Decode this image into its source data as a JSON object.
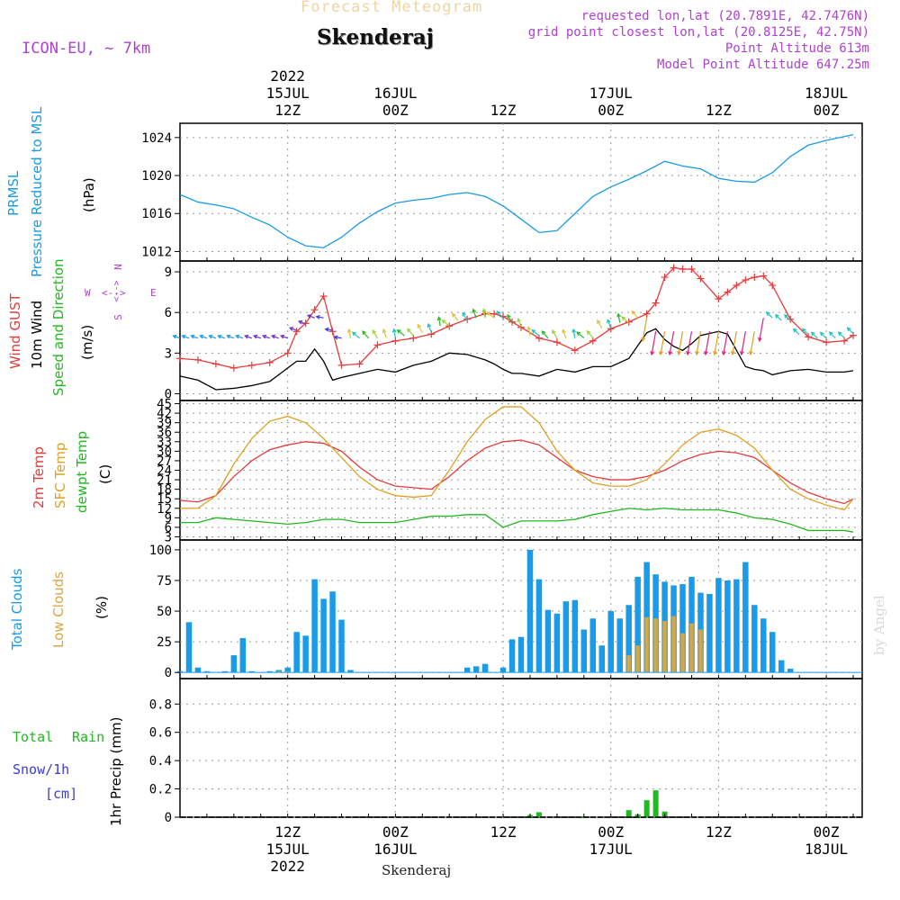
{
  "header": {
    "product": "Forecast Meteogram",
    "location": "Skenderaj",
    "model": "ICON-EU, ~ 7km",
    "requested": "requested lon,lat (20.7891E, 42.7476N)",
    "gridpoint": "grid point closest lon,lat (20.8125E, 42.75N)",
    "point_alt": "Point Altitude 613m",
    "model_alt": "Model Point Altitude 647.25m",
    "footer_location": "Skenderaj",
    "credit": "by Angel"
  },
  "colors": {
    "pressure": "#1a9be8",
    "gust": "#e83a3a",
    "wind": "#000000",
    "wind_dir": "#22b822",
    "t2m": "#e83a3a",
    "sfc": "#e0a020",
    "dewpt": "#22b822",
    "total_clouds": "#1a9be8",
    "low_clouds": "#d9a640",
    "rain": "#22b822",
    "snow": "#3a3ae0",
    "meta": "#b040d0",
    "credit": "#d0d0d0"
  },
  "time_axis": {
    "top_labels": [
      {
        "h": 12,
        "lines": [
          "2022",
          "15JUL",
          "12Z"
        ]
      },
      {
        "h": 24,
        "lines": [
          "16JUL",
          "00Z"
        ]
      },
      {
        "h": 36,
        "lines": [
          "12Z"
        ]
      },
      {
        "h": 48,
        "lines": [
          "17JUL",
          "00Z"
        ]
      },
      {
        "h": 60,
        "lines": [
          "12Z"
        ]
      },
      {
        "h": 72,
        "lines": [
          "18JUL",
          "00Z"
        ]
      }
    ],
    "bottom_labels": [
      {
        "h": 12,
        "lines": [
          "12Z",
          "15JUL",
          "2022"
        ]
      },
      {
        "h": 24,
        "lines": [
          "00Z",
          "16JUL"
        ]
      },
      {
        "h": 36,
        "lines": [
          "12Z"
        ]
      },
      {
        "h": 48,
        "lines": [
          "00Z",
          "17JUL"
        ]
      },
      {
        "h": 60,
        "lines": [
          "12Z"
        ]
      },
      {
        "h": 72,
        "lines": [
          "00Z",
          "18JUL"
        ]
      }
    ]
  },
  "panels": {
    "pressure": {
      "labels": [
        "PRMSL",
        "Pressure Reduced to MSL"
      ],
      "unit": "(hPa)"
    },
    "wind": {
      "labels": [
        "Wind GUST",
        "10m Wind",
        "Speed and Direction"
      ],
      "unit": "(m/s)",
      "compass": [
        "N",
        "S",
        "W",
        "E"
      ]
    },
    "temp": {
      "labels": [
        "2m Temp",
        "SFC Temp",
        "dewpt Temp"
      ],
      "unit": "(C)"
    },
    "clouds": {
      "labels": [
        "Total Clouds",
        "Low Clouds"
      ],
      "unit": "(%)"
    },
    "precip": {
      "labels": [
        "Total",
        "Rain",
        "Snow/1h",
        "[cm]"
      ],
      "unit": "1hr Precip (mm)"
    }
  },
  "chart_data": [
    {
      "type": "line",
      "name": "pressure",
      "ylabel": "Pressure Reduced to MSL (hPa)",
      "ylim": [
        1011,
        1025.5
      ],
      "yticks": [
        1012,
        1016,
        1020,
        1024
      ],
      "x": [
        0,
        2,
        4,
        6,
        8,
        10,
        12,
        14,
        16,
        18,
        20,
        22,
        24,
        26,
        28,
        30,
        32,
        34,
        36,
        38,
        40,
        42,
        44,
        46,
        48,
        50,
        52,
        54,
        56,
        58,
        60,
        62,
        64,
        66,
        68,
        70,
        72,
        74,
        75
      ],
      "series": [
        {
          "name": "PRMSL",
          "values": [
            1018,
            1017.2,
            1016.9,
            1016.5,
            1015.6,
            1014.8,
            1013.5,
            1012.6,
            1012.4,
            1013.5,
            1015,
            1016.2,
            1017.1,
            1017.4,
            1017.6,
            1018,
            1018.2,
            1017.8,
            1016.8,
            1015.4,
            1014,
            1014.2,
            1016,
            1017.8,
            1018.8,
            1019.6,
            1020.5,
            1021.5,
            1021,
            1020.7,
            1019.7,
            1019.4,
            1019.3,
            1020.3,
            1022,
            1023.2,
            1023.7,
            1024.1,
            1024.3
          ]
        }
      ],
      "grid": true
    },
    {
      "type": "line",
      "name": "wind",
      "ylabel": "(m/s)",
      "ylim": [
        -0.5,
        9.8
      ],
      "yticks": [
        0,
        3,
        6,
        9
      ],
      "x": [
        0,
        2,
        4,
        6,
        8,
        10,
        12,
        13,
        14,
        15,
        16,
        17,
        18,
        20,
        22,
        24,
        26,
        28,
        30,
        32,
        34,
        35,
        36,
        37,
        38,
        40,
        42,
        44,
        46,
        48,
        50,
        52,
        53,
        54,
        55,
        56,
        57,
        58,
        60,
        61,
        62,
        63,
        64,
        65,
        66,
        68,
        70,
        72,
        74,
        75
      ],
      "series": [
        {
          "name": "Wind GUST",
          "values": [
            2.6,
            2.5,
            2.2,
            1.9,
            2.1,
            2.3,
            3.0,
            4.6,
            5.2,
            6.2,
            7.2,
            4.6,
            2.1,
            2.2,
            3.6,
            3.9,
            4.1,
            4.4,
            5.0,
            5.5,
            5.9,
            5.9,
            5.7,
            5.3,
            4.9,
            4.1,
            3.8,
            3.2,
            3.9,
            4.8,
            5.3,
            5.9,
            6.7,
            8.6,
            9.3,
            9.2,
            9.2,
            8.5,
            7.0,
            7.5,
            8.0,
            8.4,
            8.6,
            8.7,
            8.0,
            5.5,
            4.2,
            3.8,
            3.9,
            4.3
          ]
        },
        {
          "name": "10m Wind",
          "values": [
            1.3,
            1.0,
            0.3,
            0.4,
            0.6,
            0.9,
            1.9,
            2.4,
            2.4,
            3.3,
            2.4,
            1.0,
            1.2,
            1.5,
            1.8,
            1.6,
            2.1,
            2.4,
            3.0,
            2.9,
            2.5,
            2.2,
            1.8,
            1.5,
            1.5,
            1.3,
            1.8,
            1.6,
            2.0,
            2.0,
            2.6,
            4.5,
            4.8,
            4.0,
            3.5,
            3.2,
            3.7,
            4.3,
            4.6,
            4.4,
            3.2,
            2.0,
            1.8,
            1.7,
            1.4,
            1.7,
            1.8,
            1.6,
            1.6,
            1.7
          ]
        }
      ],
      "wind_barbs": true,
      "grid": true
    },
    {
      "type": "line",
      "name": "temperature",
      "ylabel": "(C)",
      "ylim": [
        2,
        46
      ],
      "yticks": [
        3,
        6,
        9,
        12,
        15,
        18,
        21,
        24,
        27,
        30,
        33,
        36,
        39,
        42,
        45
      ],
      "x": [
        0,
        2,
        4,
        6,
        8,
        10,
        12,
        14,
        16,
        18,
        20,
        22,
        24,
        26,
        28,
        30,
        32,
        34,
        36,
        38,
        40,
        42,
        44,
        46,
        48,
        50,
        52,
        54,
        56,
        58,
        60,
        62,
        64,
        66,
        68,
        70,
        72,
        74,
        75
      ],
      "series": [
        {
          "name": "2m Temp",
          "values": [
            14.5,
            14,
            16,
            22,
            27,
            30.5,
            32,
            33,
            32.5,
            30,
            25,
            21,
            19,
            18.5,
            18,
            22,
            27,
            31,
            33,
            33.5,
            32,
            28,
            24,
            22,
            21,
            21,
            22,
            24,
            27,
            29,
            30,
            29.5,
            28,
            24,
            20,
            17,
            15,
            13.5,
            15
          ]
        },
        {
          "name": "SFC Temp",
          "values": [
            12,
            12,
            16,
            26,
            34,
            39.5,
            41,
            39,
            34,
            28,
            22,
            18,
            16,
            15.5,
            16,
            24,
            33,
            40,
            44,
            44,
            39,
            30,
            24,
            20,
            19,
            19,
            21,
            26,
            32,
            36,
            37,
            35,
            31,
            24,
            18,
            15,
            13,
            11.5,
            15
          ]
        },
        {
          "name": "dewpt Temp",
          "values": [
            7.5,
            7.5,
            9,
            8.5,
            8,
            7.5,
            7,
            7.5,
            8.5,
            8.5,
            7.5,
            7.5,
            7.5,
            8.5,
            9.5,
            9.5,
            10,
            10,
            6,
            8,
            8,
            8,
            8.5,
            10,
            11,
            12,
            11.5,
            12,
            11.5,
            11.5,
            11.5,
            10.5,
            9,
            8.5,
            7,
            5,
            5,
            5,
            4.5
          ]
        }
      ],
      "grid": true
    },
    {
      "type": "bar",
      "name": "clouds",
      "ylabel": "(%)",
      "ylim": [
        -5,
        108
      ],
      "yticks": [
        0,
        25,
        50,
        75,
        100
      ],
      "x": [
        0,
        1,
        2,
        3,
        4,
        5,
        6,
        7,
        8,
        9,
        10,
        11,
        12,
        13,
        14,
        15,
        16,
        17,
        18,
        19,
        20,
        21,
        22,
        23,
        24,
        25,
        26,
        27,
        28,
        29,
        30,
        31,
        32,
        33,
        34,
        35,
        36,
        37,
        38,
        39,
        40,
        41,
        42,
        43,
        44,
        45,
        46,
        47,
        48,
        49,
        50,
        51,
        52,
        53,
        54,
        55,
        56,
        57,
        58,
        59,
        60,
        61,
        62,
        63,
        64,
        65,
        66,
        67,
        68,
        69,
        70,
        71,
        72,
        73,
        74,
        75
      ],
      "series": [
        {
          "name": "Total Clouds",
          "values": [
            1,
            41,
            4,
            1,
            0,
            1,
            14,
            28,
            1,
            0,
            1,
            2,
            4,
            33,
            30,
            76,
            60,
            66,
            43,
            2,
            0,
            0,
            0,
            0,
            0,
            0,
            0,
            0,
            0,
            0,
            0,
            0,
            4,
            5,
            7,
            0,
            4,
            27,
            29,
            100,
            76,
            51,
            48,
            58,
            59,
            35,
            44,
            22,
            50,
            44,
            55,
            78,
            90,
            80,
            74,
            71,
            72,
            78,
            65,
            64,
            77,
            75,
            76,
            90,
            55,
            44,
            33,
            10,
            3,
            0,
            0,
            0,
            0,
            0,
            0,
            0
          ]
        },
        {
          "name": "Low Clouds",
          "values": [
            0,
            0,
            0,
            0,
            0,
            0,
            0,
            0,
            0,
            0,
            0,
            1,
            1,
            0,
            0,
            0,
            0,
            0,
            0,
            0,
            0,
            0,
            0,
            0,
            0,
            0,
            0,
            0,
            0,
            0,
            0,
            0,
            0,
            0,
            0,
            0,
            0,
            0,
            0,
            0,
            0,
            0,
            0,
            0,
            0,
            0,
            0,
            0,
            0,
            0,
            14,
            22,
            45,
            44,
            42,
            46,
            32,
            40,
            35,
            0,
            0,
            0,
            0,
            0,
            0,
            0,
            0,
            0,
            0,
            0,
            0,
            0,
            0,
            0,
            0,
            0
          ]
        }
      ],
      "grid": true
    },
    {
      "type": "bar",
      "name": "precip",
      "ylabel": "1hr Precip (mm)",
      "ylim": [
        0,
        0.98
      ],
      "yticks": [
        0,
        0.2,
        0.4,
        0.6,
        0.8
      ],
      "ytick_labels": [
        "0",
        "0.2",
        "0.4",
        "0.6",
        "0.8"
      ],
      "x": [
        39,
        40,
        45,
        50,
        51,
        52,
        53,
        54
      ],
      "series": [
        {
          "name": "Total Rain",
          "values": [
            0.015,
            0.035,
            0.005,
            0.05,
            0.02,
            0.12,
            0.19,
            0.04
          ]
        }
      ],
      "grid": true
    }
  ]
}
